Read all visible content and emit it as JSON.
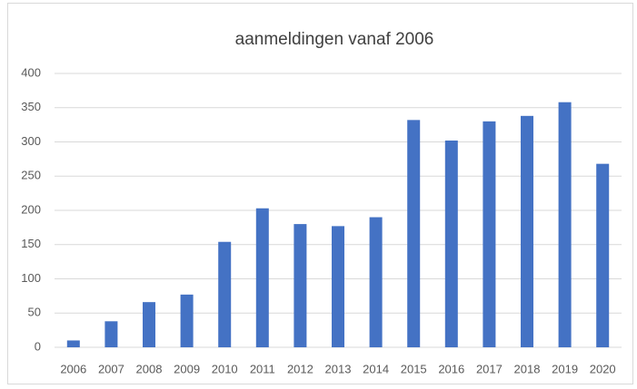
{
  "chart_data": {
    "type": "bar",
    "title": "aanmeldingen vanaf 2006",
    "categories": [
      "2006",
      "2007",
      "2008",
      "2009",
      "2010",
      "2011",
      "2012",
      "2013",
      "2014",
      "2015",
      "2016",
      "2017",
      "2018",
      "2019",
      "2020"
    ],
    "values": [
      10,
      38,
      66,
      77,
      154,
      203,
      180,
      177,
      190,
      332,
      302,
      330,
      338,
      358,
      268
    ],
    "color": "#4472c4",
    "ylim": [
      0,
      400
    ],
    "yticks": [
      0,
      50,
      100,
      150,
      200,
      250,
      300,
      350,
      400
    ],
    "grid": true
  }
}
